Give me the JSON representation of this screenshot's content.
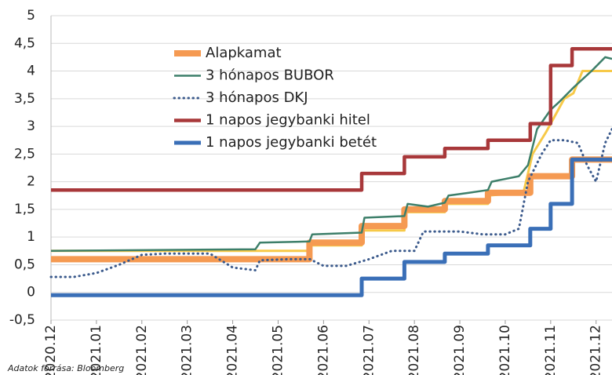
{
  "chart_data": {
    "type": "line",
    "source": "Adatok forrása: Bloomberg",
    "xlim": [
      0,
      12.35
    ],
    "xticks": [
      {
        "value": 0,
        "label": "2020.12"
      },
      {
        "value": 1,
        "label": "2021.01"
      },
      {
        "value": 2,
        "label": "2021.02"
      },
      {
        "value": 3,
        "label": "2021.03"
      },
      {
        "value": 4,
        "label": "2021.04"
      },
      {
        "value": 5,
        "label": "2021.05"
      },
      {
        "value": 6,
        "label": "2021.06"
      },
      {
        "value": 7,
        "label": "2021.07"
      },
      {
        "value": 8,
        "label": "2021.08"
      },
      {
        "value": 9,
        "label": "2021.09"
      },
      {
        "value": 10,
        "label": "2021.10"
      },
      {
        "value": 11,
        "label": "2021.11"
      },
      {
        "value": 12,
        "label": "2021.12"
      }
    ],
    "ylim": [
      -0.5,
      5
    ],
    "yticks": [
      {
        "value": -0.5,
        "label": "-0,5"
      },
      0,
      {
        "value": 0.5,
        "label": "0,5"
      },
      1,
      {
        "value": 1.5,
        "label": "1,5"
      },
      2,
      {
        "value": 2.5,
        "label": "2,5"
      },
      3,
      {
        "value": 3.5,
        "label": "3,5"
      },
      4,
      {
        "value": 4.5,
        "label": "4,5"
      },
      5
    ],
    "grid": true,
    "legend": "upper left",
    "series": [
      {
        "color": "#f7c948",
        "width": 3,
        "x": [
          0,
          5.69,
          5.69,
          6.84,
          6.84,
          7.78,
          7.78,
          8.67,
          8.67,
          9.62,
          9.62,
          10.4,
          10.6,
          10.9,
          11.3,
          11.5,
          11.7,
          12.35
        ],
        "values": [
          0.75,
          0.75,
          0.85,
          0.85,
          1.12,
          1.12,
          1.45,
          1.45,
          1.6,
          1.6,
          1.75,
          1.8,
          2.5,
          2.9,
          3.5,
          3.6,
          4.0,
          4.0
        ]
      },
      {
        "name": "Alapkamat",
        "color": "#f59a52",
        "width": 8,
        "x": [
          0,
          5.69,
          5.69,
          6.84,
          6.84,
          7.78,
          7.78,
          8.67,
          8.67,
          9.62,
          9.62,
          10.55,
          10.55,
          11.47,
          11.47,
          12.35
        ],
        "values": [
          0.6,
          0.6,
          0.9,
          0.9,
          1.2,
          1.2,
          1.5,
          1.5,
          1.65,
          1.65,
          1.8,
          1.8,
          2.1,
          2.1,
          2.4,
          2.4
        ]
      },
      {
        "name": "3 hónapos BUBOR",
        "color": "#3d7f6a",
        "width": 2.5,
        "x": [
          0,
          4.5,
          4.6,
          5.69,
          5.75,
          6.84,
          6.9,
          7.78,
          7.85,
          8.3,
          8.67,
          8.75,
          9.2,
          9.62,
          9.7,
          10.3,
          10.5,
          10.7,
          11.0,
          11.2,
          11.5,
          11.9,
          12.2,
          12.35
        ],
        "values": [
          0.75,
          0.78,
          0.9,
          0.92,
          1.05,
          1.08,
          1.35,
          1.38,
          1.6,
          1.55,
          1.62,
          1.75,
          1.8,
          1.85,
          2.0,
          2.1,
          2.3,
          2.95,
          3.3,
          3.45,
          3.7,
          4.0,
          4.25,
          4.22
        ]
      },
      {
        "name": "3 hónapos DKJ",
        "color": "#3b5a8c",
        "width": 3,
        "dotted": true,
        "x": [
          0,
          0.5,
          1,
          1.5,
          2,
          2.5,
          3,
          3.5,
          4,
          4.5,
          4.6,
          5.2,
          5.7,
          6.0,
          6.5,
          7.0,
          7.5,
          8.0,
          8.2,
          8.6,
          9.0,
          9.5,
          10.0,
          10.3,
          10.5,
          10.8,
          11.0,
          11.3,
          11.6,
          11.8,
          12.0,
          12.2,
          12.35
        ],
        "values": [
          0.28,
          0.28,
          0.35,
          0.5,
          0.68,
          0.7,
          0.7,
          0.7,
          0.45,
          0.4,
          0.58,
          0.6,
          0.6,
          0.48,
          0.48,
          0.6,
          0.75,
          0.75,
          1.1,
          1.1,
          1.1,
          1.05,
          1.05,
          1.15,
          2.0,
          2.5,
          2.75,
          2.75,
          2.7,
          2.3,
          2.0,
          2.7,
          2.95
        ]
      },
      {
        "name": "1 napos jegybanki hitel",
        "color": "#a8383a",
        "width": 4.5,
        "x": [
          0,
          6.84,
          6.84,
          7.78,
          7.78,
          8.67,
          8.67,
          9.62,
          9.62,
          10.55,
          10.55,
          11.0,
          11.0,
          11.47,
          11.47,
          12.35
        ],
        "values": [
          1.85,
          1.85,
          2.15,
          2.15,
          2.45,
          2.45,
          2.6,
          2.6,
          2.75,
          2.75,
          3.05,
          3.05,
          4.1,
          4.1,
          4.4,
          4.4
        ]
      },
      {
        "name": "1 napos jegybanki betét",
        "color": "#3a6fb7",
        "width": 5,
        "x": [
          0,
          6.84,
          6.84,
          7.78,
          7.78,
          8.67,
          8.67,
          9.62,
          9.62,
          10.55,
          10.55,
          11.0,
          11.0,
          11.47,
          11.47,
          12.35
        ],
        "values": [
          -0.05,
          -0.05,
          0.25,
          0.25,
          0.55,
          0.55,
          0.7,
          0.7,
          0.85,
          0.85,
          1.15,
          1.15,
          1.6,
          1.6,
          2.4,
          2.4
        ]
      }
    ]
  }
}
